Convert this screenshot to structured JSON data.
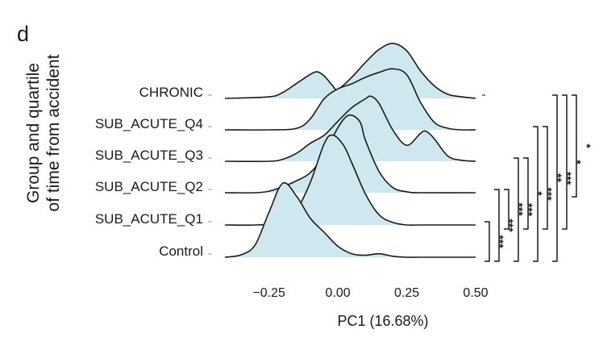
{
  "panel_label": "d",
  "chart_data": {
    "type": "ridgeline",
    "xlabel": "PC1 (16.68%)",
    "ylabel_lines": [
      "Group and quartile",
      "of time from accident"
    ],
    "xlim": [
      -0.41,
      0.5
    ],
    "xticks": [
      -0.25,
      0.0,
      0.25,
      0.5
    ],
    "xtick_labels": [
      "−0.25",
      "0.00",
      "0.25",
      "0.50"
    ],
    "fill_color": "#cfe8ef",
    "line_color": "#1a1a1a",
    "categories": [
      "CHRONIC",
      "SUB_ACUTE_Q4",
      "SUB_ACUTE_Q3",
      "SUB_ACUTE_Q2",
      "SUB_ACUTE_Q1",
      "Control"
    ],
    "series": [
      {
        "label": "CHRONIC",
        "fill_range": [
          -0.25,
          0.5
        ],
        "x": [
          -0.41,
          -0.25,
          -0.2,
          -0.15,
          -0.1,
          -0.075,
          -0.05,
          -0.02,
          0.0,
          0.05,
          0.1,
          0.15,
          0.2,
          0.25,
          0.3,
          0.35,
          0.4,
          0.45,
          0.5
        ],
        "y": [
          0.0,
          0.03,
          0.12,
          0.3,
          0.48,
          0.53,
          0.45,
          0.26,
          0.18,
          0.42,
          0.72,
          0.98,
          1.1,
          0.95,
          0.55,
          0.25,
          0.08,
          0.03,
          0.0
        ]
      },
      {
        "label": "SUB_ACUTE_Q4",
        "fill_range": [
          -0.25,
          0.5
        ],
        "x": [
          -0.41,
          -0.25,
          -0.15,
          -0.1,
          -0.05,
          0.0,
          0.05,
          0.1,
          0.15,
          0.2,
          0.25,
          0.3,
          0.35,
          0.4,
          0.45,
          0.5
        ],
        "y": [
          0.0,
          0.0,
          0.03,
          0.22,
          0.62,
          0.82,
          0.92,
          1.05,
          1.15,
          1.22,
          1.1,
          0.55,
          0.15,
          0.03,
          0.0,
          0.0
        ]
      },
      {
        "label": "SUB_ACUTE_Q3",
        "fill_range": [
          -0.25,
          0.5
        ],
        "x": [
          -0.41,
          -0.25,
          -0.2,
          -0.15,
          -0.1,
          -0.05,
          0.0,
          0.05,
          0.1,
          0.12,
          0.15,
          0.2,
          0.25,
          0.3,
          0.32,
          0.35,
          0.4,
          0.45,
          0.5
        ],
        "y": [
          0.0,
          0.0,
          0.04,
          0.16,
          0.36,
          0.52,
          0.8,
          1.07,
          1.25,
          1.3,
          1.15,
          0.62,
          0.32,
          0.56,
          0.6,
          0.45,
          0.1,
          0.02,
          0.0
        ]
      },
      {
        "label": "SUB_ACUTE_Q2",
        "fill_range": [
          -0.25,
          0.5
        ],
        "x": [
          -0.41,
          -0.3,
          -0.25,
          -0.2,
          -0.15,
          -0.1,
          -0.05,
          0.0,
          0.04,
          0.08,
          0.1,
          0.15,
          0.2,
          0.25,
          0.3,
          0.5
        ],
        "y": [
          0.0,
          0.0,
          0.03,
          0.12,
          0.24,
          0.4,
          0.76,
          1.3,
          1.55,
          1.42,
          1.05,
          0.42,
          0.1,
          0.02,
          0.0,
          0.0
        ]
      },
      {
        "label": "SUB_ACUTE_Q1",
        "fill_range": [
          -0.25,
          0.5
        ],
        "x": [
          -0.41,
          -0.3,
          -0.2,
          -0.15,
          -0.1,
          -0.05,
          -0.02,
          0.02,
          0.05,
          0.1,
          0.15,
          0.2,
          0.25,
          0.3,
          0.5
        ],
        "y": [
          0.0,
          0.0,
          0.05,
          0.3,
          0.85,
          1.62,
          1.8,
          1.6,
          1.25,
          0.62,
          0.2,
          0.05,
          0.0,
          0.0,
          0.0
        ]
      },
      {
        "label": "Control",
        "fill_range": [
          -0.41,
          0.5
        ],
        "x": [
          -0.41,
          -0.35,
          -0.3,
          -0.25,
          -0.2,
          -0.15,
          -0.1,
          -0.05,
          0.0,
          0.05,
          0.1,
          0.15,
          0.2,
          0.25,
          0.3,
          0.5
        ],
        "y": [
          0.0,
          0.05,
          0.25,
          0.9,
          1.48,
          1.22,
          0.78,
          0.5,
          0.22,
          0.07,
          0.04,
          0.07,
          0.02,
          0.0,
          0.0,
          0.0
        ]
      }
    ],
    "significance": [
      {
        "label": "***",
        "from": "Control",
        "to": "SUB_ACUTE_Q1"
      },
      {
        "label": "***",
        "from": "Control",
        "to": "SUB_ACUTE_Q2"
      },
      {
        "label": "***",
        "from": "SUB_ACUTE_Q1",
        "to": "SUB_ACUTE_Q2"
      },
      {
        "label": "***",
        "from": "Control",
        "to": "SUB_ACUTE_Q3"
      },
      {
        "label": "*",
        "from": "SUB_ACUTE_Q1",
        "to": "SUB_ACUTE_Q3"
      },
      {
        "label": "***",
        "from": "Control",
        "to": "SUB_ACUTE_Q4"
      },
      {
        "label": "**",
        "from": "SUB_ACUTE_Q1",
        "to": "SUB_ACUTE_Q4"
      },
      {
        "label": "***",
        "from": "Control",
        "to": "CHRONIC"
      },
      {
        "label": "*",
        "from": "SUB_ACUTE_Q1",
        "to": "CHRONIC"
      },
      {
        "label": "*",
        "from": "SUB_ACUTE_Q2",
        "to": "CHRONIC"
      }
    ]
  }
}
